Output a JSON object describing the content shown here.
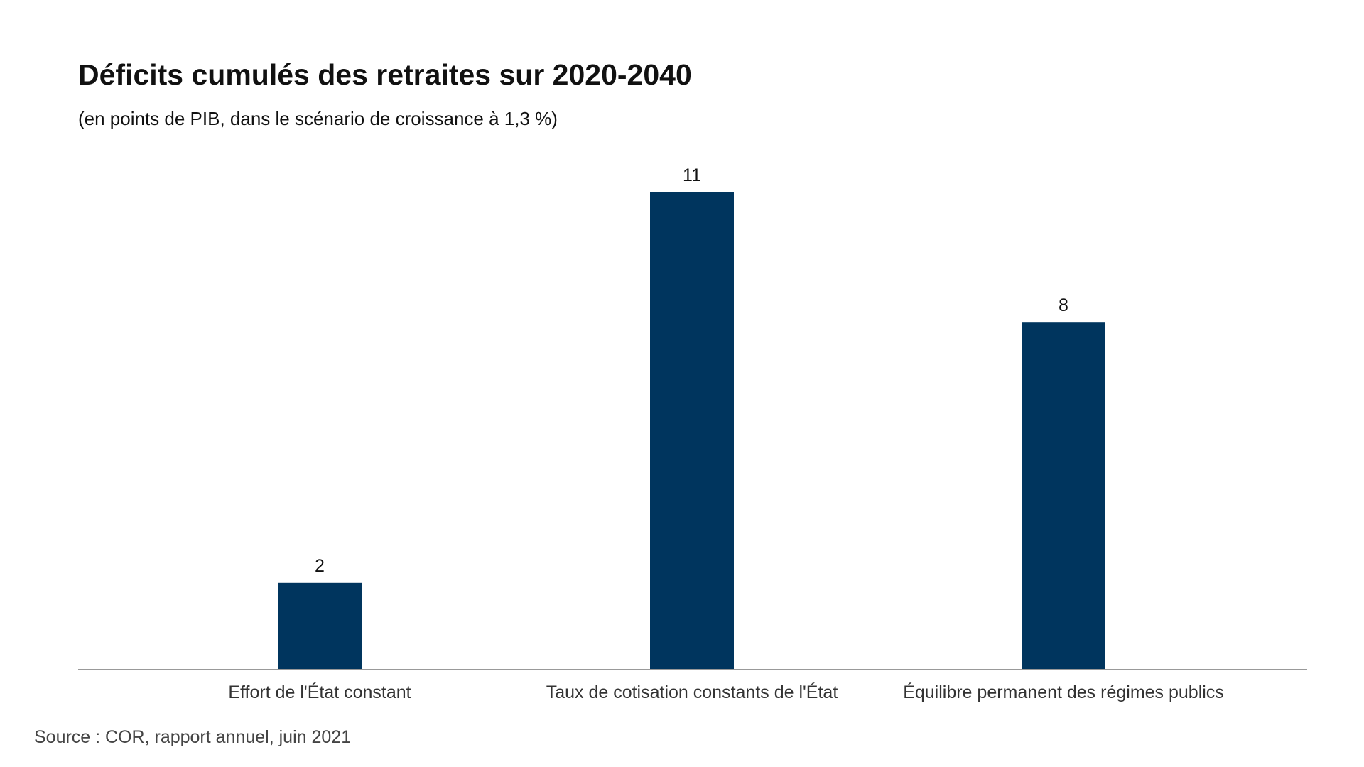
{
  "header": {
    "title": "Déficits cumulés des retraites sur 2020-2040",
    "subtitle": "(en points de PIB, dans le scénario de croissance à 1,3 %)"
  },
  "footer": {
    "source": "Source : COR, rapport annuel, juin 2021"
  },
  "chart_data": {
    "type": "bar",
    "title": "Déficits cumulés des retraites sur 2020-2040",
    "subtitle": "(en points de PIB, dans le scénario de croissance à 1,3 %)",
    "categories": [
      "Effort de l'État constant",
      "Taux de cotisation constants de l'État",
      "Équilibre permanent des régimes publics"
    ],
    "values": [
      2,
      11,
      8
    ],
    "data_labels": [
      "2",
      "11",
      "8"
    ],
    "xlabel": "",
    "ylabel": "",
    "ylim": [
      0,
      12
    ],
    "grid": false,
    "legend": "none",
    "colors": {
      "bar": "#00355e",
      "axis": "#999999"
    }
  }
}
